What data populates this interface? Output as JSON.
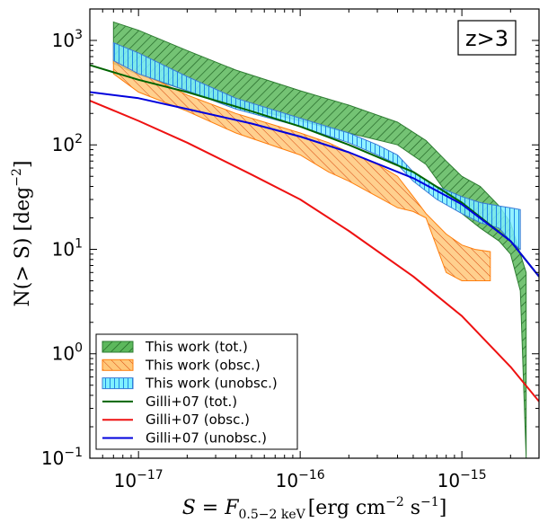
{
  "chart_data": {
    "type": "area",
    "xscale": "log",
    "yscale": "log",
    "xlim": [
      5e-18,
      3e-15
    ],
    "ylim": [
      0.1,
      2000
    ],
    "xlabel_main": "S = F",
    "xlabel_sub": "0.5−2 keV",
    "xlabel_units": "[erg cm",
    "xlabel_exp1": "−2",
    "xlabel_s": " s",
    "xlabel_exp2": "−1",
    "xlabel_close": "]",
    "ylabel_main": "N(> S) [deg",
    "ylabel_exp": "−2",
    "ylabel_close": "]",
    "annotation": "z>3",
    "x_ticks": [
      {
        "value": 1e-17,
        "base": "10",
        "exp": "−17"
      },
      {
        "value": 1e-16,
        "base": "10",
        "exp": "−16"
      },
      {
        "value": 1e-15,
        "base": "10",
        "exp": "−15"
      }
    ],
    "y_ticks": [
      {
        "value": 1000,
        "base": "10",
        "exp": "3"
      },
      {
        "value": 100,
        "base": "10",
        "exp": "2"
      },
      {
        "value": 10,
        "base": "10",
        "exp": "1"
      },
      {
        "value": 1,
        "base": "10",
        "exp": "0"
      },
      {
        "value": 0.1,
        "base": "10",
        "exp": "−1"
      }
    ],
    "bands": [
      {
        "name": "This work (tot.)",
        "face": "#5cb85c",
        "edge": "#2e7d32",
        "hatch": "diag",
        "hatch_color": "#1b5e20",
        "x": [
          7e-18,
          1e-17,
          2e-17,
          4e-17,
          1e-16,
          2e-16,
          4e-16,
          6e-16,
          8e-16,
          1e-15,
          1.3e-15,
          1.7e-15,
          2e-15,
          2.3e-15,
          2.5e-15
        ],
        "upper": [
          1500,
          1250,
          800,
          520,
          330,
          240,
          165,
          110,
          70,
          50,
          40,
          26,
          18,
          9,
          6
        ],
        "lower": [
          600,
          470,
          330,
          240,
          170,
          130,
          100,
          65,
          35,
          22,
          16,
          12,
          9,
          4,
          0.1
        ]
      },
      {
        "name": "This work (obsc.)",
        "face": "#ffc87a",
        "edge": "#ff7f0e",
        "hatch": "diag-rev",
        "hatch_color": "#d9480f",
        "x": [
          7e-18,
          1e-17,
          2e-17,
          4e-17,
          1e-16,
          1.5e-16,
          2e-16,
          3e-16,
          4e-16,
          5e-16,
          6e-16,
          8e-16,
          1e-15,
          1.2e-15,
          1.5e-15
        ],
        "upper": [
          650,
          500,
          300,
          200,
          130,
          105,
          85,
          65,
          50,
          32,
          22,
          14,
          11,
          10,
          9.5
        ],
        "lower": [
          480,
          320,
          210,
          130,
          80,
          55,
          45,
          32,
          25,
          23,
          20,
          6,
          5,
          5,
          5
        ]
      },
      {
        "name": "This work (unobsc.)",
        "face": "#7ff0ff",
        "edge": "#3a7bd5",
        "hatch": "vert",
        "hatch_color": "#1e88e5",
        "x": [
          7e-18,
          1e-17,
          2e-17,
          4e-17,
          1e-16,
          2e-16,
          3e-16,
          4e-16,
          5e-16,
          7e-16,
          1e-15,
          1.3e-15,
          1.7e-15,
          2e-15,
          2.3e-15
        ],
        "upper": [
          950,
          760,
          450,
          280,
          180,
          130,
          100,
          80,
          55,
          40,
          32,
          28,
          26,
          25,
          24
        ],
        "lower": [
          640,
          480,
          330,
          220,
          150,
          105,
          80,
          65,
          45,
          30,
          22,
          18,
          16,
          12,
          10
        ]
      }
    ],
    "series": [
      {
        "name": "Gilli+07 (tot.)",
        "color": "#006400",
        "x": [
          5e-18,
          1e-17,
          2e-17,
          5e-17,
          1e-16,
          2e-16,
          5e-16,
          1e-15,
          2e-15,
          3e-15
        ],
        "values": [
          580,
          420,
          320,
          210,
          150,
          100,
          55,
          28,
          12,
          5.5
        ]
      },
      {
        "name": "Gilli+07 (obsc.)",
        "color": "#ee1111",
        "x": [
          5e-18,
          1e-17,
          2e-17,
          5e-17,
          1e-16,
          2e-16,
          5e-16,
          1e-15,
          2e-15,
          3e-15
        ],
        "values": [
          265,
          170,
          105,
          52,
          30,
          15,
          5.5,
          2.3,
          0.75,
          0.35
        ]
      },
      {
        "name": "Gilli+07 (unobsc.)",
        "color": "#0000dd",
        "x": [
          5e-18,
          1e-17,
          2e-17,
          5e-17,
          1e-16,
          2e-16,
          5e-16,
          1e-15,
          2e-15,
          3e-15
        ],
        "values": [
          320,
          280,
          220,
          160,
          120,
          85,
          48,
          27,
          12,
          5.5
        ]
      }
    ],
    "legend": [
      {
        "label": "This work (tot.)",
        "kind": "patch",
        "face": "#5cb85c",
        "edge": "#2e7d32",
        "hatch": "diag",
        "hatch_color": "#1b5e20"
      },
      {
        "label": "This work (obsc.)",
        "kind": "patch",
        "face": "#ffc87a",
        "edge": "#ff7f0e",
        "hatch": "diag-rev",
        "hatch_color": "#d9480f"
      },
      {
        "label": "This work (unobsc.)",
        "kind": "patch",
        "face": "#7ff0ff",
        "edge": "#3a7bd5",
        "hatch": "vert",
        "hatch_color": "#1e88e5"
      },
      {
        "label": "Gilli+07 (tot.)",
        "kind": "line",
        "color": "#006400"
      },
      {
        "label": "Gilli+07 (obsc.)",
        "kind": "line",
        "color": "#ee1111"
      },
      {
        "label": "Gilli+07 (unobsc.)",
        "kind": "line",
        "color": "#0000dd"
      }
    ],
    "legend_position": "bottom-left"
  }
}
